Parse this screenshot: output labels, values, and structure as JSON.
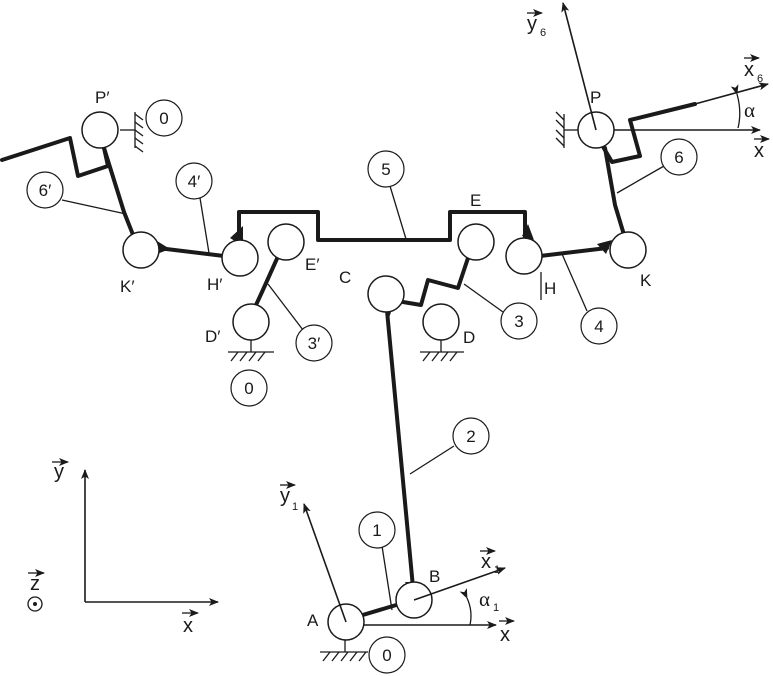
{
  "labels": {
    "A": "A",
    "B": "B",
    "C": "C",
    "D": "D",
    "D_prime": "D′",
    "E": "E",
    "E_prime": "E′",
    "H": "H",
    "H_prime": "H′",
    "K": "K",
    "K_prime": "K′",
    "P": "P",
    "P_prime": "P′"
  },
  "link_numbers": {
    "frame_ground_A": "0",
    "frame_ground_P": "0",
    "frame_ground_D_prime": "0",
    "link_1": "1",
    "link_2": "2",
    "link_3": "3",
    "link_3_prime": "3′",
    "link_4": "4",
    "link_4_prime": "4′",
    "link_5": "5",
    "link_6": "6",
    "link_6_prime": "6′"
  },
  "axes": {
    "x": "x",
    "y": "y",
    "z": "z",
    "x1": "x",
    "x1_sub": "1",
    "y1": "y",
    "y1_sub": "1",
    "x6": "x",
    "x6_sub": "6",
    "y6": "y",
    "y6_sub": "6",
    "alpha": "α",
    "alpha1": "α",
    "alpha1_sub": "1"
  },
  "colors": {
    "ink": "#1a1a1a",
    "background": "#ffffff"
  }
}
